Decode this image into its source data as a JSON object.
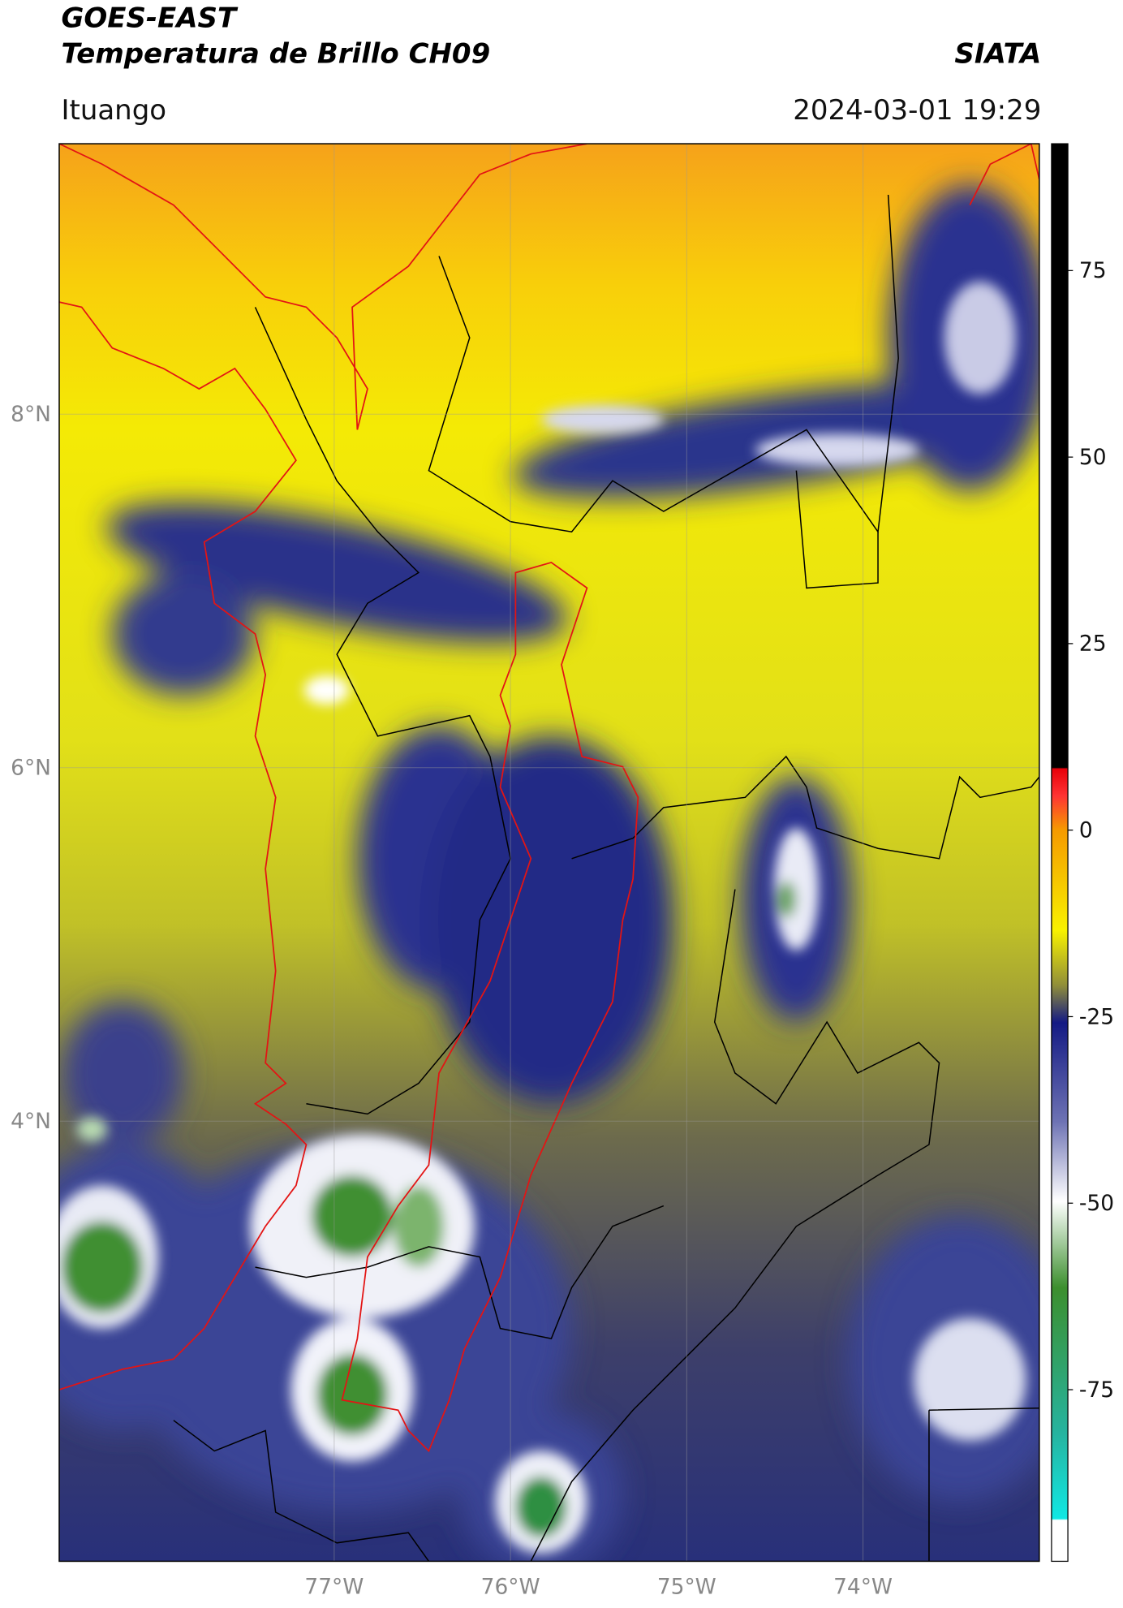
{
  "header": {
    "title": "GOES-EAST",
    "subtitle": "Temperatura de Brillo CH09",
    "brand": "SIATA",
    "location": "Ituango",
    "timestamp": "2024-03-01 19:29"
  },
  "map": {
    "lonlim": [
      -78.56,
      -73.0
    ],
    "latlim": [
      1.51,
      9.53
    ],
    "lonticks": [
      {
        "value": -77,
        "label": "77°W"
      },
      {
        "value": -76,
        "label": "76°W"
      },
      {
        "value": -75,
        "label": "75°W"
      },
      {
        "value": -74,
        "label": "74°W"
      }
    ],
    "latticks": [
      {
        "value": 4,
        "label": "4°N"
      },
      {
        "value": 6,
        "label": "6°N"
      },
      {
        "value": 8,
        "label": "8°N"
      }
    ],
    "grid": true
  },
  "colorbar": {
    "lim": [
      -98,
      92
    ],
    "ticks": [
      75,
      50,
      25,
      0,
      -25,
      -50,
      -75
    ]
  }
}
